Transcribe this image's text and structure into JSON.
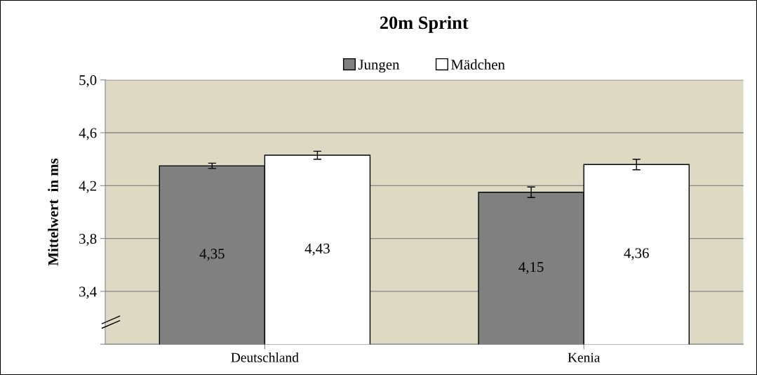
{
  "chart_data": {
    "type": "bar",
    "title": "20m Sprint",
    "ylabel": "Mittelwert  in ms",
    "categories": [
      "Deutschland",
      "Kenia"
    ],
    "series": [
      {
        "name": "Jungen",
        "color": "#808080",
        "values": [
          4.35,
          4.15
        ],
        "errors": [
          0.02,
          0.04
        ],
        "value_labels": [
          "4,35",
          "4,15"
        ]
      },
      {
        "name": "Mädchen",
        "color": "#ffffff",
        "values": [
          4.43,
          4.36
        ],
        "errors": [
          0.03,
          0.04
        ],
        "value_labels": [
          "4,43",
          "4,36"
        ]
      }
    ],
    "ylim": [
      3.0,
      5.0
    ],
    "yticks": [
      {
        "value": 3.0,
        "label": null
      },
      {
        "value": 3.4,
        "label": "3,4"
      },
      {
        "value": 3.8,
        "label": "3,8"
      },
      {
        "value": 4.2,
        "label": "4,2"
      },
      {
        "value": 4.6,
        "label": "4,6"
      },
      {
        "value": 5.0,
        "label": "5,0"
      }
    ],
    "grid": "y",
    "legend": "top"
  }
}
